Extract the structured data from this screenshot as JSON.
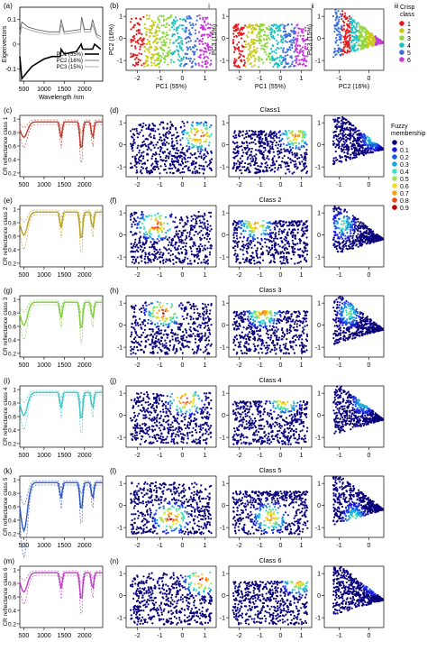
{
  "colors": {
    "crisp": [
      "#e41a1c",
      "#c8c81a",
      "#8fd63c",
      "#1ac2c2",
      "#3a6ee0",
      "#c53ad6"
    ],
    "membership": [
      "#08007a",
      "#1a1ae0",
      "#1a5ce0",
      "#1aa7e0",
      "#3ee0c2",
      "#9ee05a",
      "#f0e020",
      "#f4a410",
      "#ec4a10",
      "#b00000"
    ],
    "spectra": [
      "#c0392b",
      "#b8a020",
      "#7ccf3a",
      "#39c6c6",
      "#2c55c8",
      "#c03ac8"
    ]
  },
  "row_labels": [
    "(a)",
    "(b)",
    "(c)",
    "(d)",
    "(e)",
    "(f)",
    "(g)",
    "(h)",
    "(i)",
    "(j)",
    "(k)",
    "(l)",
    "(m)",
    "(n)"
  ],
  "column_markers": [
    "i",
    "ii",
    "iii"
  ],
  "crisp_legend": {
    "title_line1": "Crisp",
    "title_line2": "class",
    "items": [
      "1",
      "2",
      "3",
      "4",
      "5",
      "6"
    ]
  },
  "fuzzy_legend": {
    "title_line1": "Fuzzy",
    "title_line2": "membership",
    "items": [
      "0",
      "0.1",
      "0.2",
      "0.3",
      "0.4",
      "0.5",
      "0.6",
      "0.7",
      "0.8",
      "0.9"
    ]
  },
  "class_titles": [
    "Class1",
    "Class 2",
    "Class 3",
    "Class 4",
    "Class 5",
    "Class 6"
  ],
  "cr_ylabels": [
    "CR reflectance class 1",
    "CR reflectance class 2",
    "CR reflectance class 3",
    "CR reflectance class 4",
    "CR reflectance class 5",
    "CR reflectance class 6"
  ],
  "chart_data": [
    {
      "type": "line",
      "panel": "(a)",
      "xlabel": "Wavelength /nm",
      "ylabel": "Eigenvectors",
      "xticks": [
        "500",
        "1000",
        "1500",
        "2000"
      ],
      "yticks": [
        "0.1",
        "0",
        "-0.1"
      ],
      "series": [
        {
          "name": "PC1 (55%)",
          "style": "thick",
          "x": [
            400,
            450,
            500,
            700,
            1000,
            1200,
            1400,
            1420,
            1500,
            1800,
            1920,
            1950,
            2100,
            2200,
            2250,
            2400
          ],
          "y": [
            -0.05,
            -0.14,
            -0.13,
            -0.09,
            -0.06,
            -0.05,
            -0.05,
            -0.02,
            -0.04,
            -0.03,
            0.0,
            -0.02,
            -0.02,
            -0.02,
            0.0,
            -0.02
          ]
        },
        {
          "name": "PC2 (16%)",
          "style": "thin",
          "x": [
            400,
            450,
            600,
            800,
            1100,
            1380,
            1420,
            1500,
            1900,
            1930,
            2000,
            2150,
            2200,
            2300,
            2400
          ],
          "y": [
            0.05,
            0.09,
            0.07,
            0.06,
            0.05,
            0.05,
            0.1,
            0.05,
            0.06,
            0.11,
            0.06,
            0.06,
            0.1,
            0.04,
            0.03
          ]
        },
        {
          "name": "PC3 (15%)",
          "style": "thin",
          "x": [
            400,
            450,
            600,
            800,
            1100,
            1380,
            1420,
            1500,
            1900,
            1930,
            2000,
            2150,
            2200,
            2300,
            2400
          ],
          "y": [
            0.03,
            0.07,
            0.06,
            0.05,
            0.04,
            0.04,
            0.08,
            0.04,
            0.05,
            0.1,
            0.05,
            0.05,
            0.08,
            0.03,
            0.02
          ]
        }
      ]
    },
    {
      "type": "scatter",
      "panel": "(b)",
      "subplots": [
        {
          "xlabel": "PC1 (55%)",
          "ylabel": "PC2 (16%)",
          "xticks": [
            "-2",
            "-1",
            "0",
            "1"
          ],
          "yticks": [
            "1",
            "0",
            "-1"
          ]
        },
        {
          "xlabel": "PC1 (55%)",
          "ylabel": "PC3 (15%)",
          "xticks": [
            "-2",
            "-1",
            "0",
            "1"
          ],
          "yticks": [
            "1",
            "0",
            "-1"
          ]
        },
        {
          "xlabel": "PC2 (16%)",
          "ylabel": "PC3 (15%)",
          "xticks": [
            "-1",
            "0"
          ],
          "yticks": [
            "1",
            "0",
            "-1"
          ]
        }
      ]
    },
    {
      "type": "line",
      "panels": [
        "(c)",
        "(e)",
        "(g)",
        "(i)",
        "(k)",
        "(m)"
      ],
      "xticks": [
        "500",
        "1000",
        "1500",
        "2000"
      ],
      "yticks": [
        "1",
        "0.8",
        "0.6",
        "0.4",
        "0.2"
      ],
      "description_features_nm": [
        1400,
        1900,
        2200
      ]
    },
    {
      "type": "scatter",
      "panels": [
        "(d)",
        "(f)",
        "(h)",
        "(j)",
        "(l)",
        "(n)"
      ],
      "xticks_col1": [
        "-2",
        "-1",
        "0",
        "1"
      ],
      "xticks_col2": [
        "-2",
        "-1",
        "0",
        "1"
      ],
      "xticks_col3": [
        "-1",
        "0"
      ],
      "yticks": [
        "1",
        "0",
        "-1"
      ],
      "membership_centres_pc1_pc2": [
        [
          0.55,
          0.55
        ],
        [
          -1.1,
          0.6
        ],
        [
          -0.8,
          0.75
        ],
        [
          0.05,
          0.9
        ],
        [
          -0.5,
          -0.6
        ],
        [
          0.65,
          0.9
        ]
      ]
    }
  ]
}
